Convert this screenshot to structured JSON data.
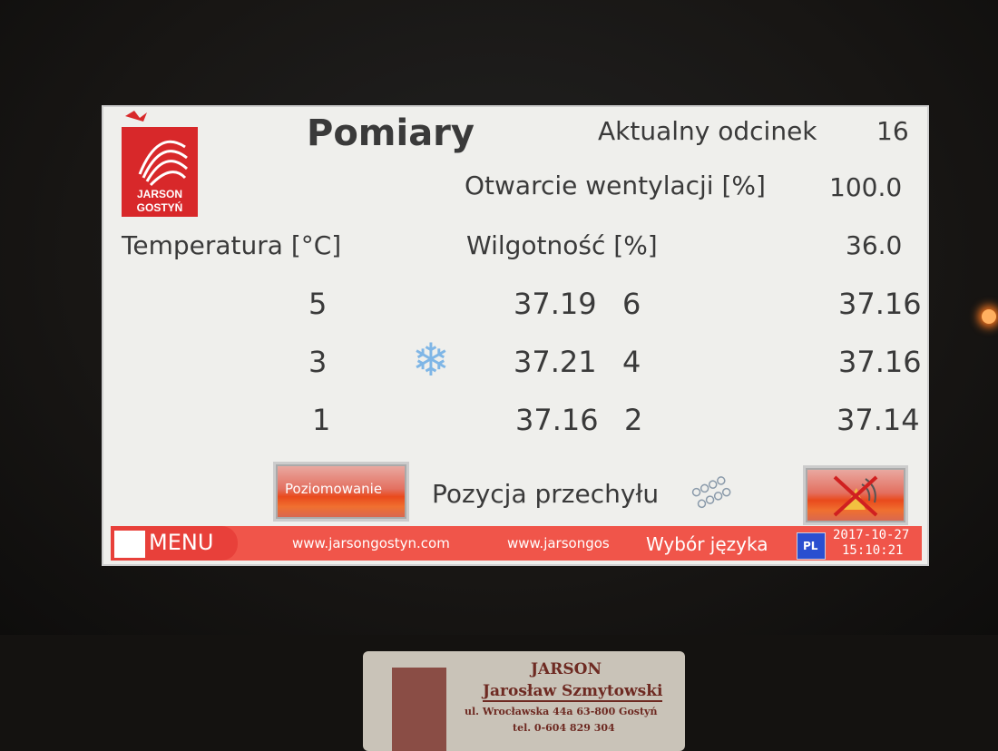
{
  "screen": {
    "logo_text": [
      "JARSON",
      "GOSTYŃ"
    ],
    "title": "Pomiary",
    "segment_label": "Aktualny odcinek",
    "segment_value": "16",
    "ventilation_label": "Otwarcie wentylacji [%]",
    "ventilation_value": "100.0",
    "temperature_label": "Temperatura  [°C]",
    "humidity_label": "Wilgotność [%]",
    "humidity_value": "36.0",
    "sensors": [
      {
        "left_id": "5",
        "left_value": "37.19",
        "right_id": "6",
        "right_value": "37.16"
      },
      {
        "left_id": "3",
        "left_value": "37.21",
        "right_id": "4",
        "right_value": "37.16"
      },
      {
        "left_id": "1",
        "left_value": "37.16",
        "right_id": "2",
        "right_value": "37.14"
      }
    ],
    "icons": {
      "cooling": "snowflake-icon",
      "tilt": "egg-tray-icon",
      "alarm": "alarm-muted-icon"
    },
    "leveling_button": "Poziomowanie",
    "tilt_label": "Pozycja przechyłu",
    "footer": {
      "menu": "MENU",
      "link1": "www.jarsongostyn.com",
      "link2": "www.jarsongos",
      "language": "Wybór języka",
      "lang_code": "PL",
      "date": "2017-10-27",
      "time": "15:10:21"
    },
    "colors": {
      "footer": "#f0554a",
      "button": "#e94a1c",
      "lang": "#2a4fd0"
    }
  },
  "plate": {
    "line1": "JARSON",
    "line2": "Jarosław Szmytowski",
    "line3": "ul. Wrocławska 44a 63-800 Gostyń",
    "line4": "tel. 0-604 829 304"
  }
}
